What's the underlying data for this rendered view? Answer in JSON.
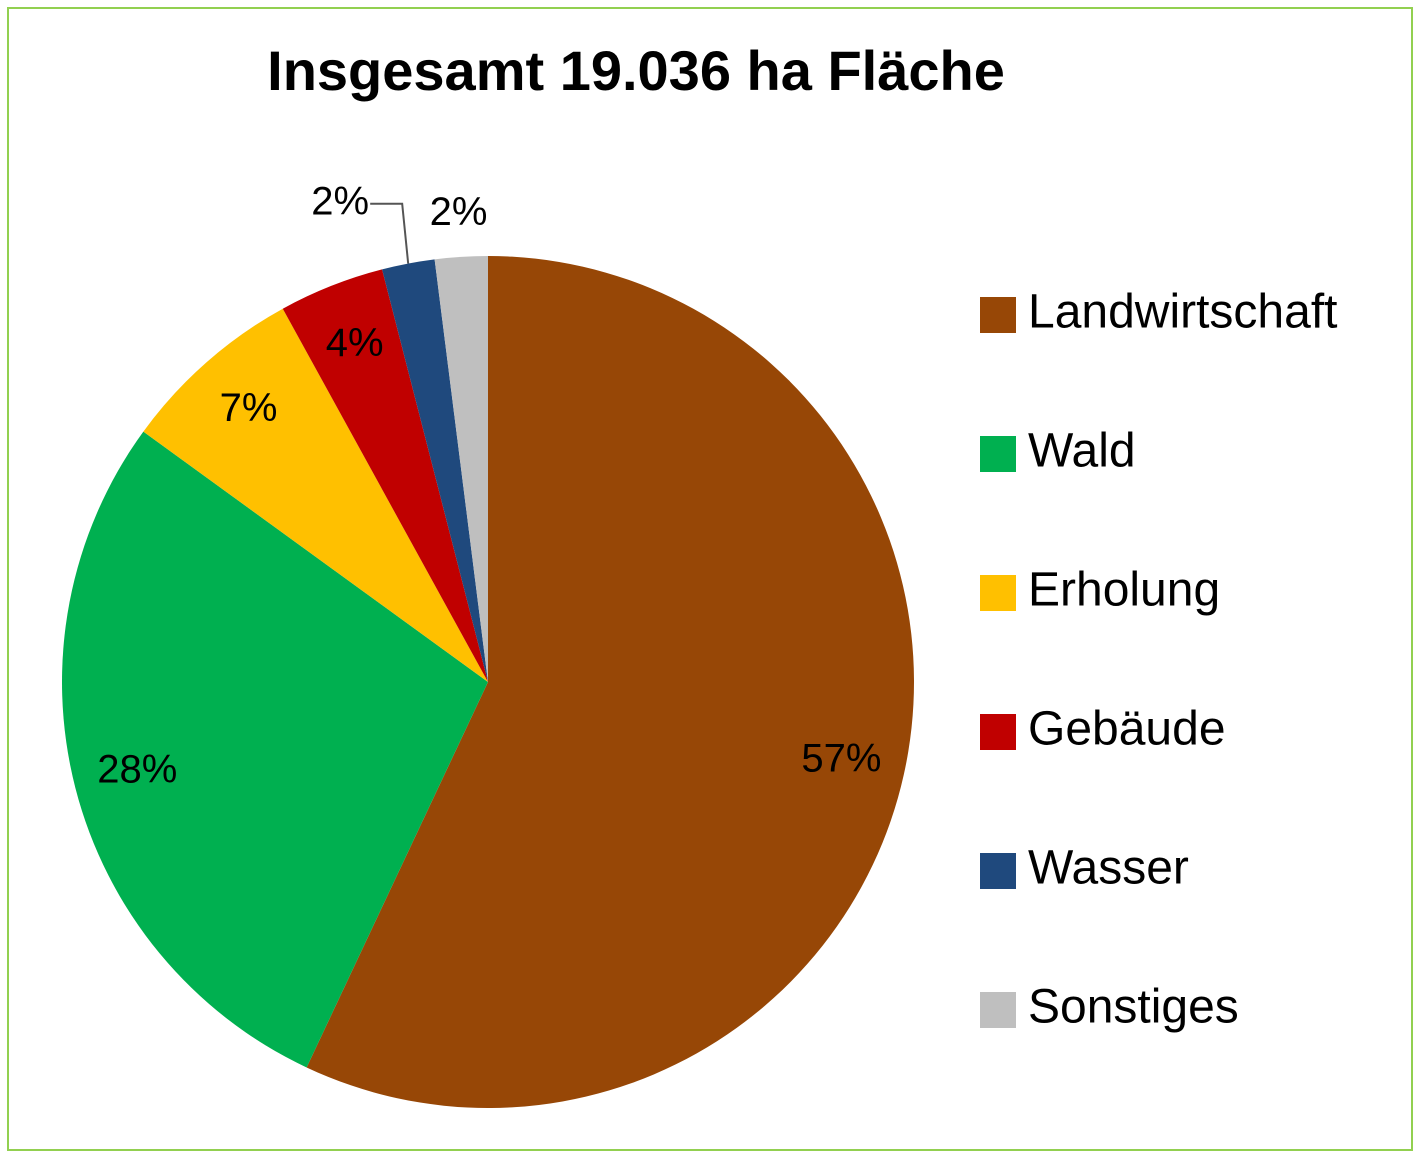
{
  "chart_data": {
    "type": "pie",
    "title": "Insgesamt 19.036 ha Fläche",
    "categories": [
      "Landwirtschaft",
      "Wald",
      "Erholung",
      "Gebäude",
      "Wasser",
      "Sonstiges"
    ],
    "values": [
      57,
      28,
      7,
      4,
      2,
      2
    ],
    "value_labels": [
      "57%",
      "28%",
      "7%",
      "4%",
      "2%",
      "2%"
    ],
    "colors": [
      "#974706",
      "#00b050",
      "#ffc000",
      "#c00000",
      "#1f497d",
      "#bfbfbf"
    ],
    "legend": "right"
  }
}
